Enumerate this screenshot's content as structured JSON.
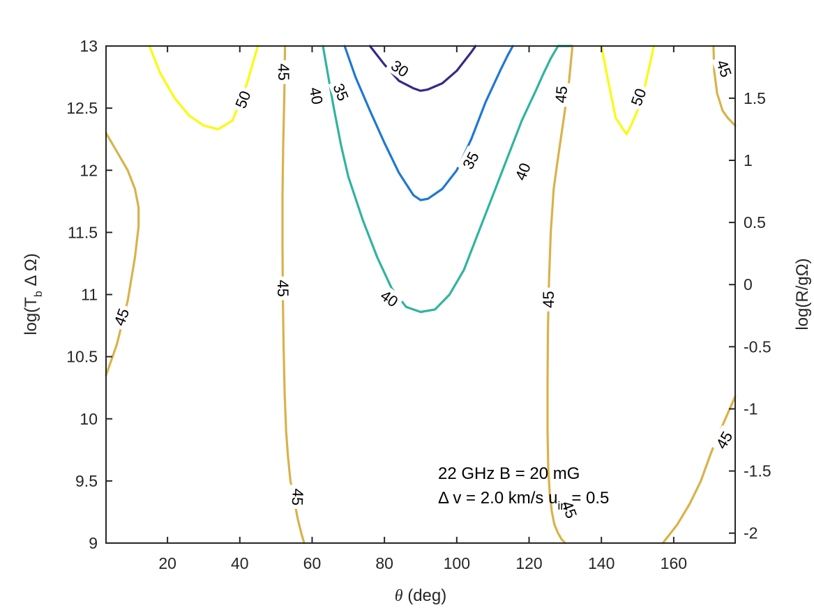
{
  "chart_data": {
    "type": "contour",
    "xlabel_symbol": "θ",
    "xlabel_unit": " (deg)",
    "ylabel": {
      "a": "log(T",
      "sub": "b",
      "b": "  Δ Ω)"
    },
    "ylabel_right": "log(R/gΩ)",
    "xlim": [
      3,
      177
    ],
    "ylim": [
      9,
      13
    ],
    "y2lim": [
      -2.08,
      1.92
    ],
    "xticks": [
      20,
      40,
      60,
      80,
      100,
      120,
      140,
      160
    ],
    "yticks": [
      9,
      9.5,
      10,
      10.5,
      11,
      11.5,
      12,
      12.5,
      13
    ],
    "y2ticks": [
      -2,
      -1.5,
      -1,
      -0.5,
      0,
      0.5,
      1,
      1.5
    ],
    "annotation": {
      "line1": "22 GHz  B = 20 mG",
      "line2_a": "Δ v = 2.0 km/s  u",
      "line2_sub": "in",
      "line2_b": " = 0.5"
    },
    "contours": [
      {
        "level": 30,
        "color": "#352a87",
        "x": [
          76,
          80,
          84,
          88,
          90,
          92,
          96,
          100,
          104,
          105.2
        ],
        "y": [
          13.0,
          12.85,
          12.72,
          12.66,
          12.64,
          12.65,
          12.7,
          12.8,
          12.95,
          13.0
        ]
      },
      {
        "level": 35,
        "color": "#1f78d1",
        "x": [
          69,
          72,
          76,
          80,
          84,
          88,
          90,
          92,
          96,
          100,
          104,
          108,
          112,
          114,
          115.5
        ],
        "y": [
          13.0,
          12.75,
          12.48,
          12.22,
          11.98,
          11.8,
          11.76,
          11.77,
          11.85,
          12.0,
          12.25,
          12.55,
          12.8,
          12.92,
          13.0
        ]
      },
      {
        "level": 40,
        "color": "#2fb49e",
        "x": [
          63,
          64.5,
          66,
          68,
          70,
          74,
          78,
          82,
          86,
          90,
          94,
          98,
          102,
          106,
          110,
          114,
          118,
          122,
          124,
          126,
          128,
          130,
          132
        ],
        "y": [
          13.0,
          12.75,
          12.5,
          12.2,
          11.95,
          11.6,
          11.3,
          11.05,
          10.9,
          10.86,
          10.88,
          11.0,
          11.2,
          11.5,
          11.8,
          12.1,
          12.4,
          12.65,
          12.78,
          12.9,
          13.0,
          13.0,
          13.0
        ]
      },
      {
        "level": 50,
        "color": "#f9fb0e",
        "x": [
          15,
          18,
          22,
          26,
          30,
          34,
          38,
          42,
          44.5,
          45
        ],
        "y": [
          13.0,
          12.78,
          12.58,
          12.44,
          12.36,
          12.33,
          12.4,
          12.7,
          12.95,
          13.0
        ]
      },
      {
        "level": 50,
        "color": "#f9fb0e",
        "x": [
          140,
          142,
          144,
          146,
          147,
          148.5,
          151,
          153,
          154.5
        ],
        "y": [
          13.0,
          12.7,
          12.42,
          12.33,
          12.29,
          12.38,
          12.55,
          12.8,
          13.0
        ]
      },
      {
        "level": 45,
        "color": "#d9b24a",
        "x": [
          3,
          6,
          9,
          11,
          12,
          12,
          11,
          9,
          6,
          3
        ],
        "y": [
          12.3,
          12.15,
          12.0,
          11.85,
          11.7,
          11.55,
          11.3,
          10.95,
          10.6,
          10.35
        ]
      },
      {
        "level": 45,
        "color": "#d9b24a",
        "x": [
          52.5,
          52.3,
          52.0,
          51.8,
          51.8,
          51.9,
          52.1,
          52.4,
          52.8,
          53.3,
          54.0,
          55.0,
          56.0,
          57.0,
          57.8
        ],
        "y": [
          13.0,
          12.6,
          12.2,
          11.8,
          11.4,
          11.0,
          10.6,
          10.2,
          9.9,
          9.7,
          9.5,
          9.35,
          9.2,
          9.08,
          9.0
        ]
      },
      {
        "level": 45,
        "color": "#d9b24a",
        "x": [
          132,
          131,
          129.5,
          128,
          126.8,
          126.0,
          125.5,
          125.2,
          125.1,
          125.1,
          125.3,
          125.7,
          126.3,
          127.0,
          128.0,
          129.0,
          130.0
        ],
        "y": [
          13.0,
          12.7,
          12.4,
          12.1,
          11.85,
          11.5,
          11.1,
          10.7,
          10.3,
          9.9,
          9.6,
          9.4,
          9.25,
          9.15,
          9.08,
          9.03,
          9.0
        ]
      },
      {
        "level": 45,
        "color": "#d9b24a",
        "x": [
          171,
          171.2,
          172,
          173.5,
          175,
          177
        ],
        "y": [
          13.0,
          12.8,
          12.62,
          12.48,
          12.42,
          12.36
        ]
      },
      {
        "level": 45,
        "color": "#d9b24a",
        "x": [
          157,
          161,
          164.5,
          167.5,
          170,
          172,
          174,
          175.5,
          177
        ],
        "y": [
          9.0,
          9.15,
          9.32,
          9.5,
          9.7,
          9.85,
          9.98,
          10.08,
          10.18
        ]
      }
    ],
    "labels": [
      {
        "text": "30",
        "x": 84.3,
        "y": 12.82,
        "angle": 35
      },
      {
        "text": "35",
        "x": 68.0,
        "y": 12.63,
        "angle": 68
      },
      {
        "text": "35",
        "x": 103.8,
        "y": 12.08,
        "angle": -62
      },
      {
        "text": "40",
        "x": 61.2,
        "y": 12.6,
        "angle": 80
      },
      {
        "text": "40",
        "x": 118.2,
        "y": 11.99,
        "angle": -68
      },
      {
        "text": "40",
        "x": 81.4,
        "y": 10.97,
        "angle": 35
      },
      {
        "text": "50",
        "x": 40.8,
        "y": 12.57,
        "angle": -68
      },
      {
        "text": "50",
        "x": 150.2,
        "y": 12.59,
        "angle": -70
      },
      {
        "text": "45",
        "x": 52.2,
        "y": 12.79,
        "angle": 90
      },
      {
        "text": "45",
        "x": 52.0,
        "y": 11.05,
        "angle": 90
      },
      {
        "text": "45",
        "x": 56.1,
        "y": 9.37,
        "angle": 93
      },
      {
        "text": "45",
        "x": 128.8,
        "y": 12.61,
        "angle": -85
      },
      {
        "text": "45",
        "x": 125.3,
        "y": 10.96,
        "angle": -90
      },
      {
        "text": "45",
        "x": 131.2,
        "y": 9.27,
        "angle": 70
      },
      {
        "text": "45",
        "x": 174.0,
        "y": 12.82,
        "angle": 70
      },
      {
        "text": "45",
        "x": 7.2,
        "y": 10.82,
        "angle": -70
      },
      {
        "text": "45",
        "x": 173.9,
        "y": 9.83,
        "angle": -60
      }
    ]
  }
}
